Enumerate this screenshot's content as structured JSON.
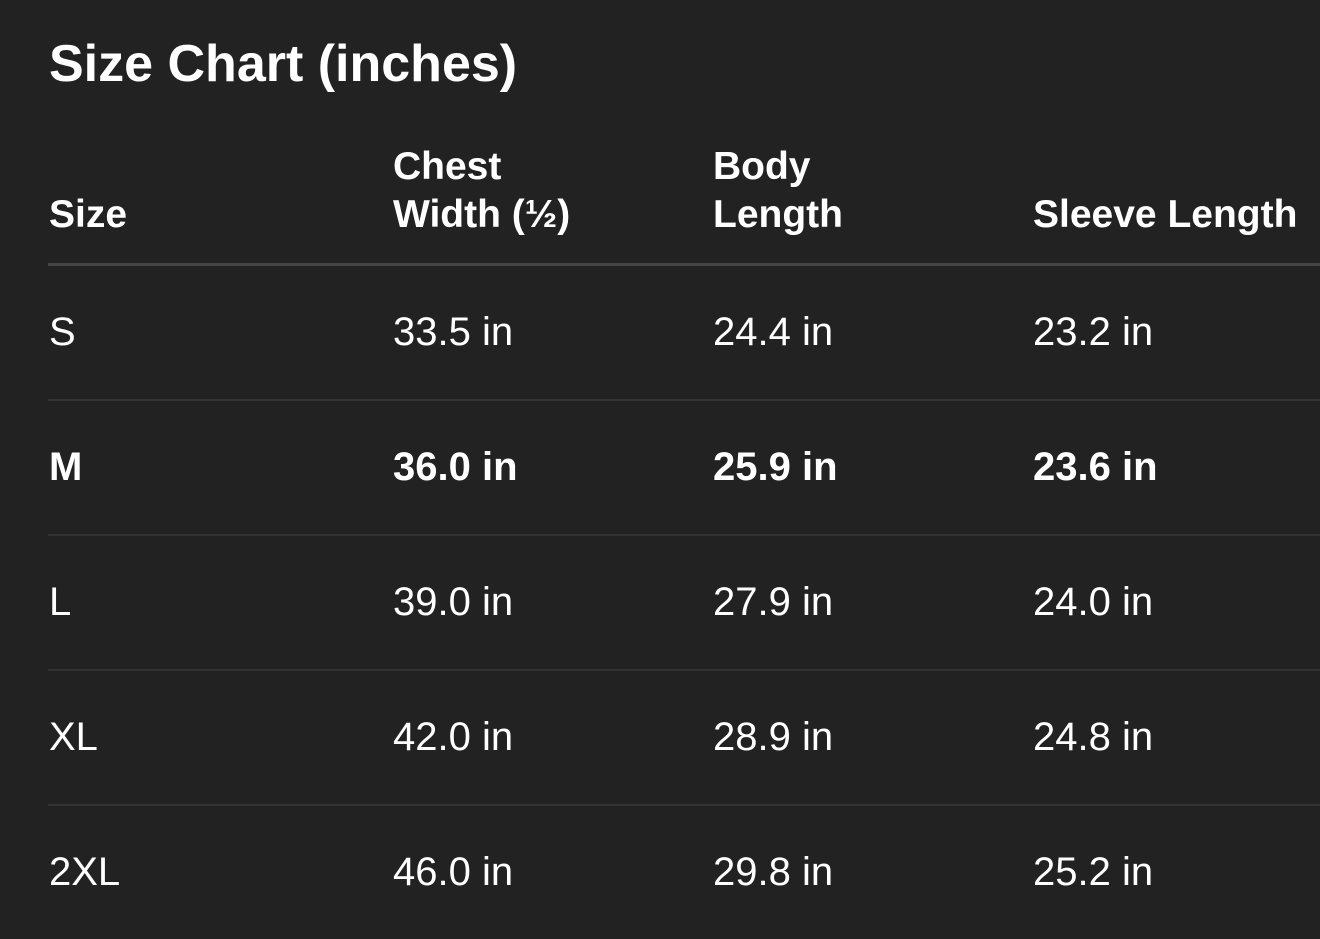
{
  "title": "Size Chart (inches)",
  "headers": [
    {
      "line1": "",
      "line2": "Size"
    },
    {
      "line1": "Chest",
      "line2": "Width (½)"
    },
    {
      "line1": "Body",
      "line2": "Length"
    },
    {
      "line1": "",
      "line2": "Sleeve Length"
    }
  ],
  "rows": [
    {
      "size": "S",
      "chest": "33.5 in",
      "body": "24.4 in",
      "sleeve": "23.2 in",
      "highlighted": false
    },
    {
      "size": "M",
      "chest": "36.0 in",
      "body": "25.9 in",
      "sleeve": "23.6 in",
      "highlighted": true
    },
    {
      "size": "L",
      "chest": "39.0 in",
      "body": "27.9 in",
      "sleeve": "24.0 in",
      "highlighted": false
    },
    {
      "size": "XL",
      "chest": "42.0 in",
      "body": "28.9 in",
      "sleeve": "24.8 in",
      "highlighted": false
    },
    {
      "size": "2XL",
      "chest": "46.0 in",
      "body": "29.8 in",
      "sleeve": "25.2 in",
      "highlighted": false
    }
  ],
  "colors": {
    "background": "#222222",
    "text": "#ffffff",
    "header_divider": "#454545",
    "row_divider": "#333333"
  }
}
